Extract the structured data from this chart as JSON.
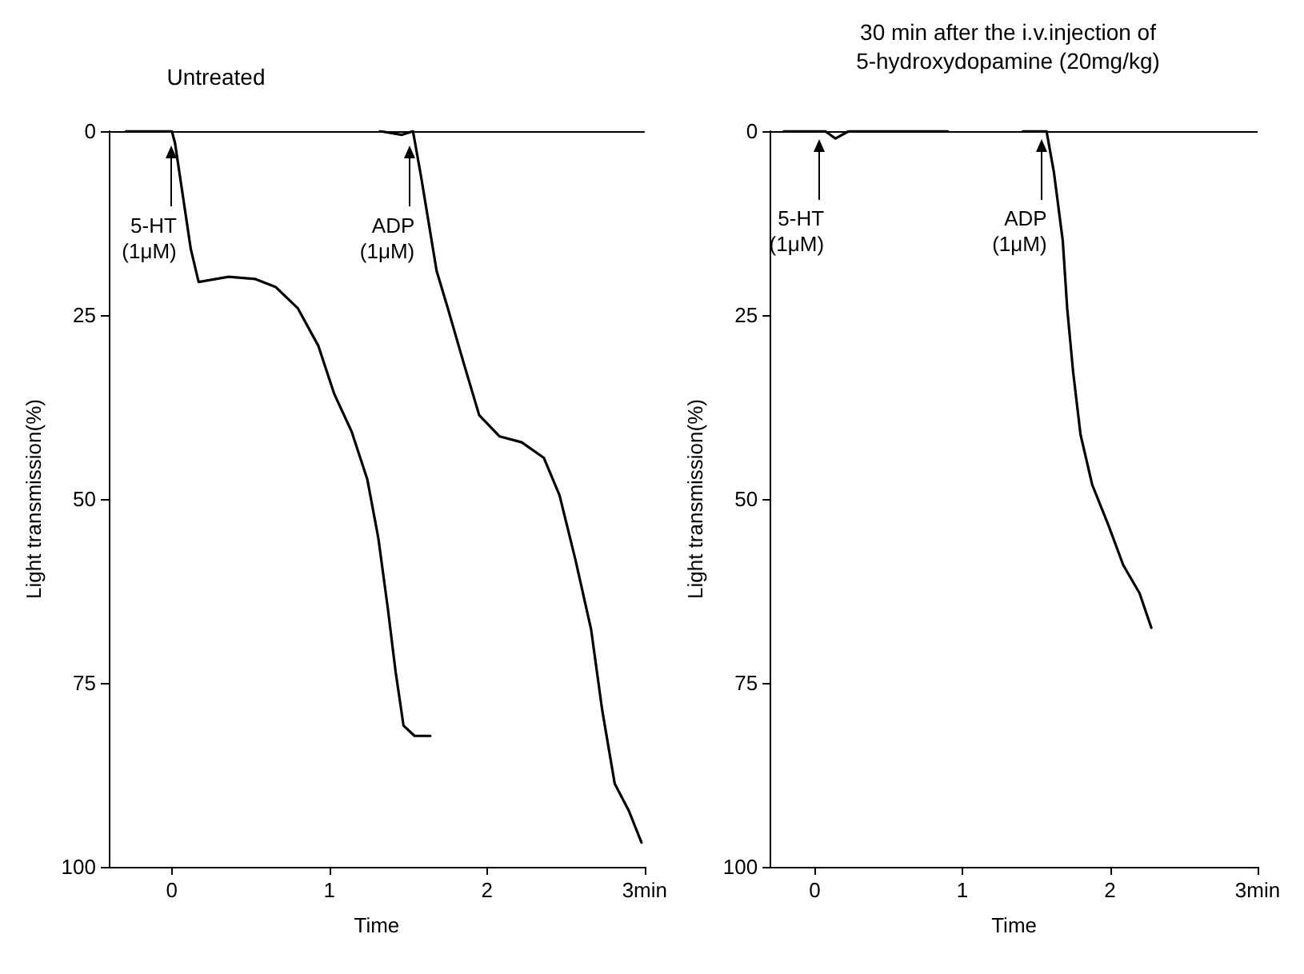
{
  "chart_data": [
    {
      "type": "line",
      "title": "Untreated",
      "xlabel": "Time",
      "ylabel": "Light transmission(%)",
      "xlim": [
        -0.4,
        3
      ],
      "ylim": [
        100,
        0
      ],
      "xticks": [
        0,
        1,
        2,
        {
          "value": 3,
          "label": "3min"
        }
      ],
      "yticks": [
        0,
        25,
        50,
        75,
        100
      ],
      "series": [
        {
          "color": "#000000",
          "x": [
            -0.29,
            -0.1,
            0,
            0.02,
            0.12,
            0.17,
            0.36,
            0.53,
            0.66,
            0.8,
            0.93,
            1.03,
            1.14,
            1.24,
            1.31,
            1.37,
            1.42,
            1.47,
            1.54,
            1.64
          ],
          "values": [
            0,
            0,
            0,
            1.6,
            16,
            20.5,
            19.8,
            20.1,
            21.2,
            24.1,
            29.2,
            35.7,
            40.8,
            47.3,
            55.3,
            64.8,
            73.5,
            80.8,
            82.2,
            82.2
          ]
        },
        {
          "color": "#000000",
          "x": [
            1.32,
            1.46,
            1.53,
            1.58,
            1.68,
            1.75,
            1.85,
            1.95,
            2.08,
            2.22,
            2.36,
            2.46,
            2.56,
            2.66,
            2.73,
            2.81,
            2.9,
            2.98
          ],
          "values": [
            0,
            0.5,
            0,
            6,
            19,
            24,
            31.4,
            38.6,
            41.5,
            42.3,
            44.4,
            49.5,
            58.2,
            67.7,
            78.6,
            88.7,
            92.4,
            96.7
          ]
        }
      ],
      "ref_lines": [
        {
          "axis": "y",
          "value": 0,
          "color": "#000000"
        }
      ],
      "annotations": [
        {
          "text": "5-HT\n(1μM)",
          "x": 0,
          "y": 2
        },
        {
          "text": "ADP\n(1μM)",
          "x": 1.51,
          "y": 2
        }
      ]
    },
    {
      "type": "line",
      "title": "30 min after the i.v.injection of\n5-hydroxydopamine (20mg/kg)",
      "xlabel": "Time",
      "ylabel": "Light transmission(%)",
      "xlim": [
        -0.3,
        3
      ],
      "ylim": [
        100,
        0
      ],
      "xticks": [
        0,
        1,
        2,
        {
          "value": 3,
          "label": "3min"
        }
      ],
      "yticks": [
        0,
        25,
        50,
        75,
        100
      ],
      "series": [
        {
          "color": "#000000",
          "x": [
            -0.21,
            0,
            0.07,
            0.14,
            0.23,
            0.54,
            0.9,
            1.2,
            1.41,
            1.57,
            1.62,
            1.68,
            1.71,
            1.75,
            1.8,
            1.88,
            1.99,
            2.09,
            2.2,
            2.28
          ],
          "values": [
            0,
            0,
            0,
            1,
            0,
            0,
            0,
            null,
            0,
            0,
            5.6,
            14.9,
            24.1,
            32.7,
            41.2,
            48.1,
            53.6,
            59,
            62.8,
            67.5
          ]
        }
      ],
      "ref_lines": [
        {
          "axis": "y",
          "value": 0,
          "color": "#000000"
        }
      ],
      "annotations": [
        {
          "text": "5-HT\n(1μM)",
          "x": 0.03,
          "y": 1
        },
        {
          "text": "ADP\n(1μM)",
          "x": 1.54,
          "y": 1
        }
      ]
    }
  ]
}
